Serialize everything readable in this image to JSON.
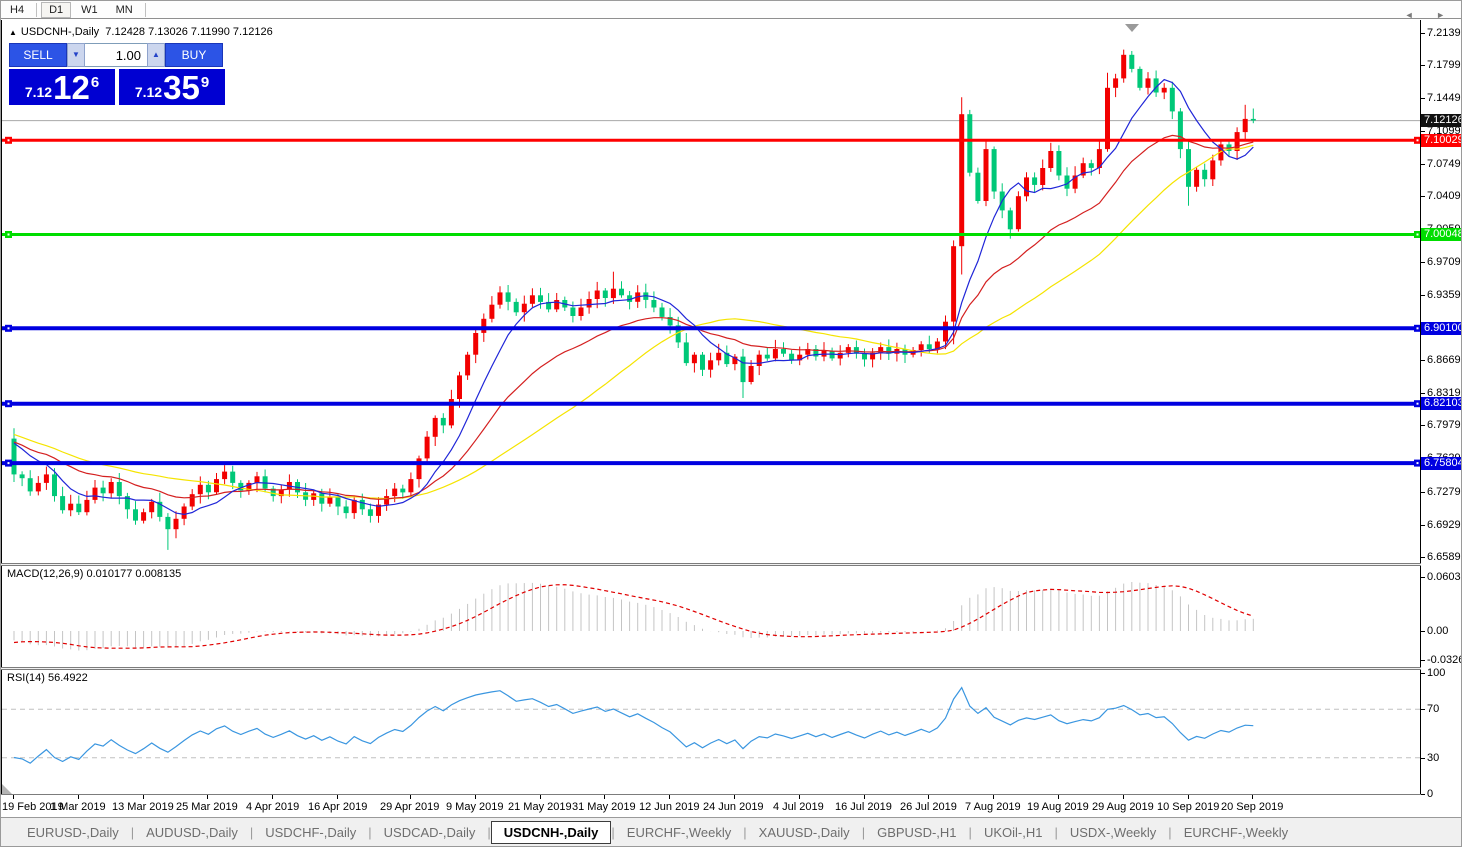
{
  "toolbar": {
    "periods": [
      "H4",
      "D1",
      "W1",
      "MN"
    ],
    "active_period": "D1"
  },
  "header": {
    "collapse_icon": "▲",
    "symbol_text": "USDCNH-,Daily",
    "ohlc": "7.12428 7.13026 7.11990 7.12126"
  },
  "trade": {
    "sell_label": "SELL",
    "buy_label": "BUY",
    "volume": "1.00",
    "spin_down_icon": "▼",
    "spin_up_icon": "▲",
    "sell": {
      "prefix": "7.12",
      "big": "12",
      "sup": "6"
    },
    "buy": {
      "prefix": "7.12",
      "big": "35",
      "sup": "9"
    }
  },
  "macd": {
    "label": "MACD(12,26,9) 0.010177 0.008135",
    "axis": [
      0.060317,
      0.0,
      -0.032648
    ]
  },
  "rsi": {
    "label": "RSI(14) 56.4922",
    "axis": [
      100,
      70,
      30,
      0
    ]
  },
  "tabs": [
    {
      "label": "EURUSD-,Daily",
      "active": false
    },
    {
      "label": "AUDUSD-,Daily",
      "active": false
    },
    {
      "label": "USDCHF-,Daily",
      "active": false
    },
    {
      "label": "USDCAD-,Daily",
      "active": false
    },
    {
      "label": "USDCNH-,Daily",
      "active": true
    },
    {
      "label": "EURCHF-,Weekly",
      "active": false
    },
    {
      "label": "XAUUSD-,Daily",
      "active": false
    },
    {
      "label": "GBPUSD-,H1",
      "active": false
    },
    {
      "label": "UKOil-,H1",
      "active": false
    },
    {
      "label": "USDX-,Weekly",
      "active": false
    },
    {
      "label": "EURCHF-,Weekly",
      "active": false
    }
  ],
  "tab_scroll_icons": "◄ ►",
  "colors": {
    "candle_up": "#f20000",
    "candle_down": "#00c878",
    "ma_fast": "#2026d8",
    "ma_mid": "#d42020",
    "ma_slow": "#f5e400",
    "level_red": "#ff0000",
    "level_green": "#00dd00",
    "level_blue": "#0000e0",
    "current_price_line": "#a8a8a8",
    "current_price_tag_bg": "#111111",
    "macd_hist": "#c4c4c4",
    "macd_signal": "#e00000",
    "rsi_line": "#3a96e0",
    "rsi_levels_dash": "#c0c0c0"
  },
  "chart_data": {
    "type": "candlestick",
    "symbol": "USDCNH",
    "timeframe": "Daily",
    "price_axis_ticks": [
      7.2139,
      7.1799,
      7.1449,
      7.1099,
      7.0749,
      7.0409,
      7.0059,
      6.9709,
      6.9359,
      6.9009,
      6.8669,
      6.8319,
      6.7979,
      6.7629,
      6.7279,
      6.6929,
      6.6589
    ],
    "current_price": {
      "value": 7.12126,
      "label": "7.12126"
    },
    "levels": [
      {
        "value": 7.10029,
        "label": "7.10029",
        "color": "level_red",
        "width": 3
      },
      {
        "value": 7.00048,
        "label": "7.00048",
        "color": "level_green",
        "width": 3
      },
      {
        "value": 6.901,
        "label": "6.90100",
        "color": "level_blue",
        "width": 4
      },
      {
        "value": 6.82103,
        "label": "6.82103",
        "color": "level_blue",
        "width": 4
      },
      {
        "value": 6.75804,
        "label": "6.75804",
        "color": "level_blue",
        "width": 4
      }
    ],
    "date_ticks": [
      {
        "label": "19 Feb 2019",
        "index": 0
      },
      {
        "label": "1 Mar 2019",
        "index": 8
      },
      {
        "label": "13 Mar 2019",
        "index": 16
      },
      {
        "label": "25 Mar 2019",
        "index": 24
      },
      {
        "label": "4 Apr 2019",
        "index": 32
      },
      {
        "label": "16 Apr 2019",
        "index": 40
      },
      {
        "label": "29 Apr 2019",
        "index": 49
      },
      {
        "label": "9 May 2019",
        "index": 57
      },
      {
        "label": "21 May 2019",
        "index": 65
      },
      {
        "label": "31 May 2019",
        "index": 73
      },
      {
        "label": "12 Jun 2019",
        "index": 81
      },
      {
        "label": "24 Jun 2019",
        "index": 89
      },
      {
        "label": "4 Jul 2019",
        "index": 97
      },
      {
        "label": "16 Jul 2019",
        "index": 105
      },
      {
        "label": "26 Jul 2019",
        "index": 113
      },
      {
        "label": "7 Aug 2019",
        "index": 121
      },
      {
        "label": "19 Aug 2019",
        "index": 129
      },
      {
        "label": "29 Aug 2019",
        "index": 137
      },
      {
        "label": "10 Sep 2019",
        "index": 145
      },
      {
        "label": "20 Sep 2019",
        "index": 153
      }
    ],
    "closes": [
      6.746,
      6.742,
      6.728,
      6.737,
      6.746,
      6.723,
      6.708,
      6.715,
      6.706,
      6.719,
      6.732,
      6.726,
      6.738,
      6.723,
      6.709,
      6.697,
      6.706,
      6.717,
      6.701,
      6.688,
      6.699,
      6.712,
      6.725,
      6.735,
      6.727,
      6.741,
      6.749,
      6.737,
      6.729,
      6.737,
      6.744,
      6.731,
      6.723,
      6.73,
      6.738,
      6.727,
      6.719,
      6.726,
      6.715,
      6.722,
      6.712,
      6.705,
      6.719,
      6.709,
      6.702,
      6.714,
      6.723,
      6.731,
      6.727,
      6.741,
      6.763,
      6.786,
      6.806,
      6.798,
      6.826,
      6.851,
      6.873,
      6.896,
      6.911,
      6.926,
      6.939,
      6.929,
      6.918,
      6.927,
      6.936,
      6.929,
      6.921,
      6.931,
      6.923,
      6.914,
      6.923,
      6.932,
      6.941,
      6.933,
      6.943,
      6.936,
      6.929,
      6.939,
      6.931,
      6.923,
      6.913,
      6.904,
      6.886,
      6.864,
      6.873,
      6.857,
      6.867,
      6.875,
      6.863,
      6.871,
      6.844,
      6.861,
      6.873,
      6.869,
      6.879,
      6.874,
      6.867,
      6.873,
      6.879,
      6.871,
      6.877,
      6.869,
      6.875,
      6.881,
      6.874,
      6.868,
      6.875,
      6.881,
      6.874,
      6.879,
      6.873,
      6.878,
      6.884,
      6.879,
      6.887,
      6.908,
      6.988,
      7.128,
      7.066,
      7.036,
      7.091,
      7.046,
      7.026,
      7.006,
      7.041,
      7.061,
      7.053,
      7.071,
      7.089,
      7.063,
      7.049,
      7.063,
      7.076,
      7.071,
      7.091,
      7.156,
      7.166,
      7.191,
      7.176,
      7.156,
      7.166,
      7.151,
      7.156,
      7.131,
      7.091,
      7.051,
      7.069,
      7.059,
      7.079,
      7.096,
      7.089,
      7.109,
      7.123,
      7.12126
    ],
    "seed_closes": [
      6.92,
      6.915,
      6.908,
      6.912,
      6.905,
      6.898,
      6.902,
      6.895,
      6.888,
      6.892,
      6.885,
      6.878,
      6.882,
      6.874,
      6.868,
      6.872,
      6.865,
      6.858,
      6.862,
      6.855,
      6.848,
      6.852,
      6.845,
      6.838,
      6.842,
      6.835,
      6.828,
      6.832,
      6.825,
      6.818,
      6.812,
      6.805,
      6.798,
      6.792,
      6.785,
      6.778,
      6.772,
      6.765,
      6.758,
      6.752,
      6.745,
      6.74,
      6.748,
      6.756,
      6.764,
      6.772,
      6.78,
      6.788,
      6.792,
      6.786,
      6.78,
      6.778,
      6.782,
      6.786,
      6.784
    ],
    "wick_overrides": {
      "0": {
        "high": 6.795,
        "low": 6.738
      },
      "19": {
        "low": 6.666
      },
      "74": {
        "high": 6.961
      },
      "90": {
        "low": 6.827
      },
      "116": {
        "low": 6.884
      },
      "117": {
        "high": 7.146,
        "low": 6.958
      },
      "123": {
        "low": 6.996
      },
      "135": {
        "high": 7.172
      },
      "137": {
        "high": 7.1965
      },
      "145": {
        "low": 7.031
      },
      "152": {
        "high": 7.138
      },
      "153": {
        "high": 7.134
      }
    },
    "indicators": {
      "ma_fast_period": 8,
      "ma_mid_period": 21,
      "ma_slow_period": 34,
      "macd": {
        "fast": 12,
        "slow": 26,
        "signal": 9,
        "value": 0.010177,
        "signal_value": 0.008135,
        "axis_max": 0.060317,
        "axis_min": -0.032648
      },
      "rsi": {
        "period": 14,
        "value": 56.4922,
        "levels": [
          70,
          30
        ]
      }
    },
    "ylim": [
      6.6519,
      7.2279
    ]
  }
}
